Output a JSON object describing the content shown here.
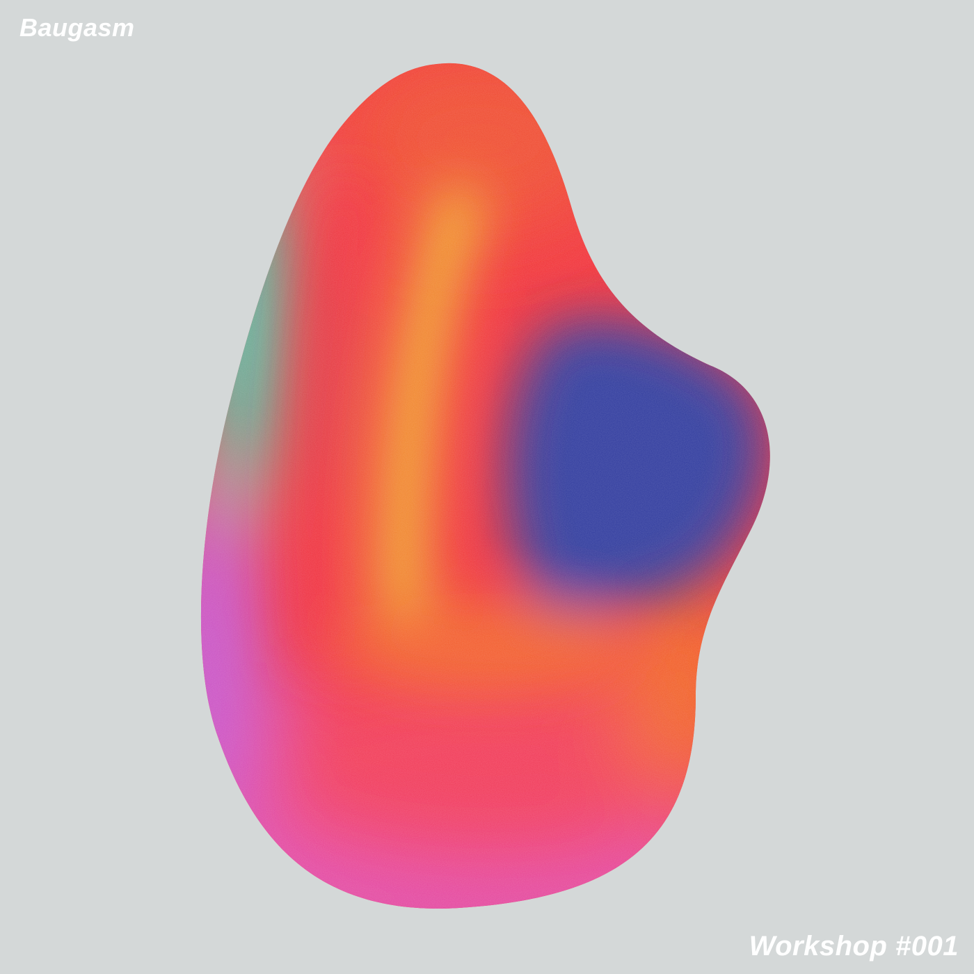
{
  "poster": {
    "brand": "Baugasm",
    "edition": "Workshop #001"
  },
  "palette": {
    "background": "#d4d8d8",
    "text": "#ffffff",
    "blob_colors": [
      "#2ee8c4",
      "#f2323c",
      "#f0bb2e",
      "#333c9f",
      "#c55ad8",
      "#f23c5a",
      "#e050b4",
      "#f26a28"
    ]
  },
  "icons": {
    "blob": "gradient-blob-artwork"
  }
}
